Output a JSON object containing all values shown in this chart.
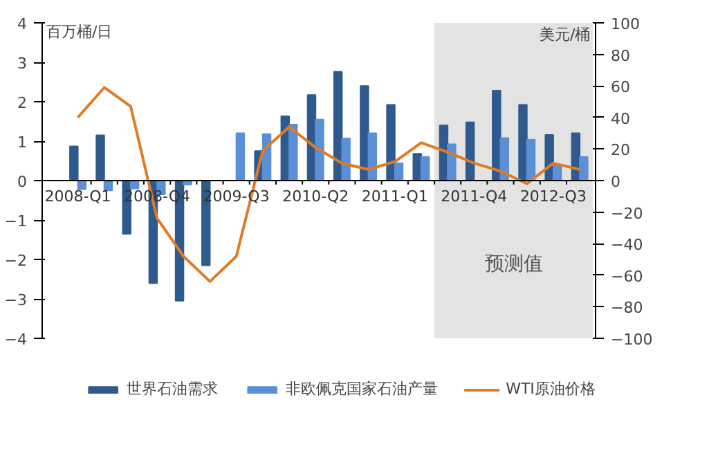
{
  "chart_data": {
    "type": "bar",
    "ylabel": "百万桶/日",
    "y2label": "美元/桶",
    "categories": [
      "2008-Q1",
      null,
      null,
      "2008-Q4",
      null,
      null,
      "2009-Q3",
      null,
      null,
      "2010-Q2",
      null,
      null,
      "2011-Q1",
      null,
      null,
      "2011-Q4",
      null,
      null,
      "2012-Q3",
      null
    ],
    "series": [
      {
        "name": "世界石油需求",
        "color": "#2f5a8e",
        "values": [
          0.87,
          1.15,
          -1.35,
          -2.6,
          -3.05,
          -2.15,
          0,
          0.75,
          1.63,
          2.17,
          2.76,
          2.4,
          1.92,
          0.68,
          1.4,
          1.48,
          2.28,
          1.92,
          1.16,
          1.2
        ]
      },
      {
        "name": "非欧佩克国家石油产量",
        "color": "#5b8fd6",
        "values": [
          -0.22,
          -0.25,
          -0.2,
          -0.35,
          -0.1,
          0,
          1.2,
          1.18,
          1.42,
          1.55,
          1.07,
          1.2,
          0.44,
          0.6,
          0.92,
          0,
          1.08,
          1.04,
          0.4,
          0.6
        ]
      },
      {
        "name": "WTI原油价格",
        "color": "#e07b25",
        "type": "line",
        "axis": "y2",
        "values": [
          40,
          59,
          47,
          -24,
          -48,
          -64,
          -48,
          19,
          34,
          21,
          11,
          7,
          12,
          24,
          18,
          11,
          6,
          -2,
          11,
          7
        ]
      }
    ],
    "ylim": [
      -4,
      4
    ],
    "yticks": [
      -4,
      -3,
      -2,
      -1,
      0,
      1,
      2,
      3,
      4
    ],
    "y2lim": [
      -100,
      100
    ],
    "y2ticks": [
      -100,
      -80,
      -60,
      -40,
      -20,
      0,
      20,
      40,
      60,
      80,
      100
    ],
    "annotations": [
      "预测值"
    ],
    "grid": false,
    "legend": "bottom"
  }
}
